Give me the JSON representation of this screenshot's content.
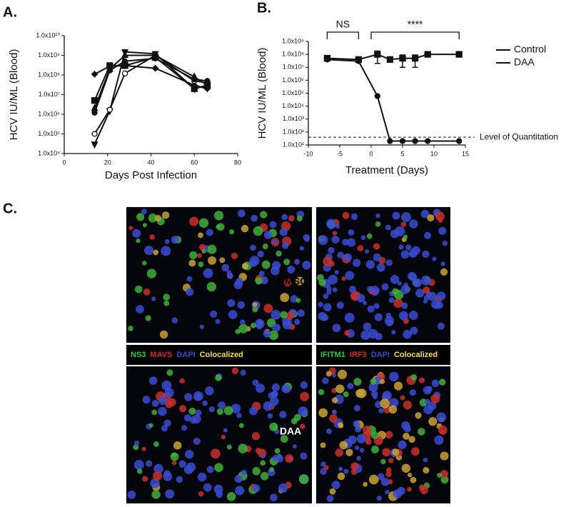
{
  "chart_data": [
    {
      "type": "line",
      "panel_label": "A.",
      "x_label": "Days Post Infection",
      "y_label": "HCV IU/ML (Blood)",
      "log_y": true,
      "x": [
        14,
        21,
        28,
        42,
        60,
        66
      ],
      "series": [
        {
          "color": "#111111",
          "marker": "diamond",
          "values": [
            110000000,
            280000000,
            300000000,
            220000000,
            30000000,
            20000000
          ]
        },
        {
          "color": "#111111",
          "marker": "triangle-down",
          "values": [
            30000,
            1500000,
            1500000000,
            1200000000,
            20000000,
            30000000
          ]
        },
        {
          "color": "#111111",
          "marker": "circle-open",
          "values": [
            100000,
            1700000,
            120000000,
            1000000000,
            50000000,
            40000000
          ]
        },
        {
          "color": "#111111",
          "marker": "square",
          "values": [
            5000000,
            300000000,
            300000000,
            800000000,
            20000000,
            30000000
          ]
        },
        {
          "color": "#111111",
          "marker": "circle",
          "values": [
            1200000,
            170000000,
            500000000,
            700000000,
            60000000,
            50000000
          ]
        },
        {
          "color": "#111111",
          "marker": "triangle-up",
          "values": [
            2000000,
            200000000,
            1000000000,
            1000000000,
            80000000,
            30000000
          ]
        }
      ],
      "xlim": [
        0,
        80
      ],
      "xticks": [
        0,
        20,
        40,
        60,
        80
      ],
      "ylim": [
        10000,
        10000000000
      ],
      "yticks": [
        {
          "value": 10000,
          "label": "1.0x10⁴"
        },
        {
          "value": 100000,
          "label": "1.0x10⁵"
        },
        {
          "value": 1000000,
          "label": "1.0x10⁶"
        },
        {
          "value": 10000000,
          "label": "1.0x10⁷"
        },
        {
          "value": 100000000,
          "label": "1.0x10⁸"
        },
        {
          "value": 1000000000,
          "label": "1.0x10⁹"
        },
        {
          "value": 10000000000,
          "label": "1.0x10¹⁰"
        }
      ]
    },
    {
      "type": "line",
      "panel_label": "B.",
      "x_label": "Treatment (Days)",
      "y_label": "HCV IU/ML (Blood)",
      "log_y": true,
      "x": [
        -7,
        -2,
        1,
        3,
        5,
        7,
        9,
        14
      ],
      "series": [
        {
          "name": "Control",
          "color": "#111111",
          "marker": "square",
          "values": [
            50000000,
            40000000,
            100000000,
            40000000,
            50000000,
            50000000,
            100000000,
            100000000
          ],
          "errors": [
            null,
            null,
            80000000,
            null,
            40000000,
            40000000,
            null,
            null
          ]
        },
        {
          "name": "DAA",
          "color": "#111111",
          "marker": "circle",
          "values": [
            40000000,
            30000000,
            60000,
            20,
            20,
            20,
            20,
            20
          ]
        }
      ],
      "reference_line": {
        "value": 40,
        "label": "Level of Quantitation"
      },
      "annotations": [
        {
          "text": "NS",
          "x": [
            -7,
            -2
          ]
        },
        {
          "text": "****",
          "x": [
            0,
            14
          ]
        }
      ],
      "xlim": [
        -10,
        15
      ],
      "xticks": [
        -10,
        -5,
        0,
        5,
        10,
        15
      ],
      "ylim": [
        10,
        1000000000
      ],
      "yticks": [
        {
          "value": 10,
          "label": "1.0x10¹"
        },
        {
          "value": 100,
          "label": "1.0x10²"
        },
        {
          "value": 1000,
          "label": "1.0x10³"
        },
        {
          "value": 10000,
          "label": "1.0x10⁴"
        },
        {
          "value": 100000,
          "label": "1.0x10⁵"
        },
        {
          "value": 1000000,
          "label": "1.0x10⁶"
        },
        {
          "value": 10000000,
          "label": "1.0x10⁷"
        },
        {
          "value": 100000000,
          "label": "1.0x10⁸"
        },
        {
          "value": 1000000000,
          "label": "1.0x10⁹"
        }
      ]
    }
  ],
  "panel_c": {
    "label": "C.",
    "rows": [
      "DMSO",
      "DAA"
    ],
    "legends": [
      [
        {
          "text": "NS3",
          "color": "#2ecc40"
        },
        {
          "text": "MAVS",
          "color": "#e02828"
        },
        {
          "text": "DAPI",
          "color": "#3848d8"
        },
        {
          "text": "Colocalized",
          "color": "#f2e232"
        }
      ],
      [
        {
          "text": "IFITM1",
          "color": "#2ecc40"
        },
        {
          "text": "IRF3",
          "color": "#e02828"
        },
        {
          "text": "DAPI",
          "color": "#3848d8"
        },
        {
          "text": "Colocalized",
          "color": "#f2e232"
        }
      ]
    ]
  }
}
